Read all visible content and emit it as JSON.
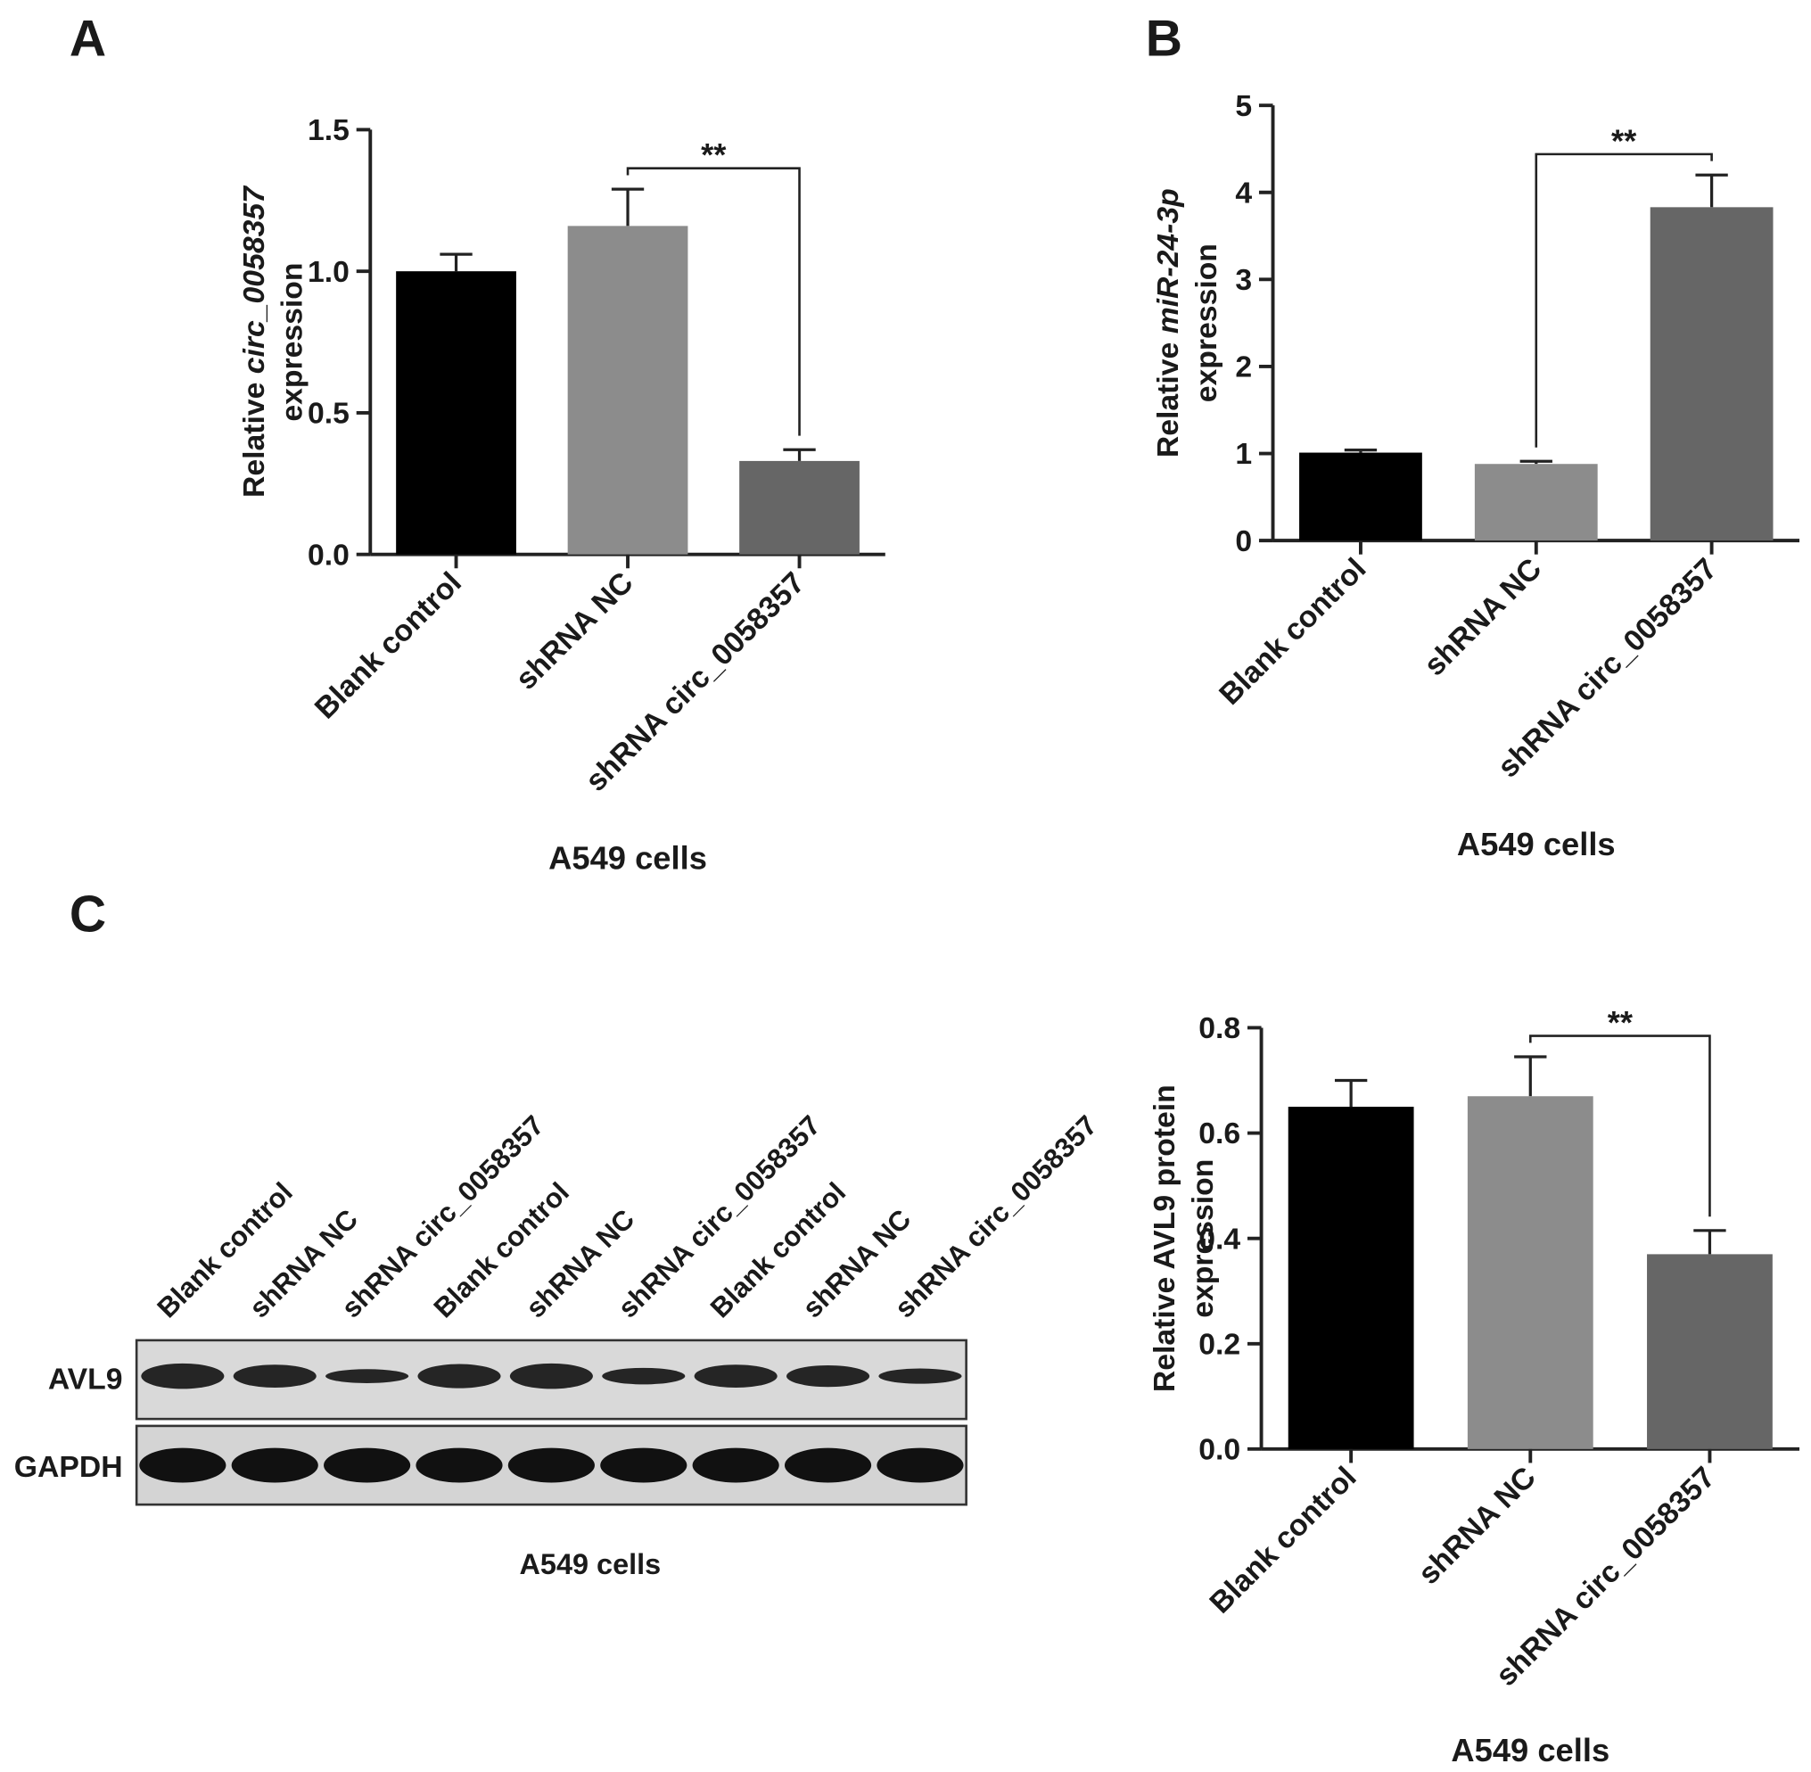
{
  "panels": [
    "A",
    "B",
    "C"
  ],
  "blot": {
    "lanes": [
      "Blank control",
      "shRNA NC",
      "shRNA circ_0058357",
      "Blank control",
      "shRNA NC",
      "shRNA circ_0058357",
      "Blank control",
      "shRNA NC",
      "shRNA circ_0058357"
    ],
    "bands": [
      "AVL9",
      "GAPDH"
    ],
    "xlabel": "A549 cells"
  },
  "chart_data": [
    {
      "type": "bar",
      "categories": [
        "Blank control",
        "shRNA NC",
        "shRNA circ_0058357"
      ],
      "values": [
        1.0,
        1.16,
        0.33
      ],
      "errors": [
        0.06,
        0.13,
        0.04
      ],
      "colors": [
        "#000000",
        "#8c8c8c",
        "#666666"
      ],
      "ylabel": [
        [
          "Relative",
          "circ_0058357"
        ],
        [
          "expression"
        ]
      ],
      "ylabel_italic": [
        [
          false,
          true
        ],
        [
          false
        ]
      ],
      "xlabel": "A549 cells",
      "ylim": [
        0,
        1.5
      ],
      "yticks": [
        {
          "value": 0,
          "label": "0.0"
        },
        {
          "value": 0.5,
          "label": "0.5"
        },
        {
          "value": 1,
          "label": "1.0"
        },
        {
          "value": 1.5,
          "label": "1.5"
        }
      ],
      "annotations": [
        {
          "text": "**",
          "from": 1,
          "to": 2
        }
      ]
    },
    {
      "type": "bar",
      "categories": [
        "Blank control",
        "shRNA NC",
        "shRNA circ_0058357"
      ],
      "values": [
        1.01,
        0.88,
        3.83
      ],
      "errors": [
        0.03,
        0.03,
        0.37
      ],
      "colors": [
        "#000000",
        "#8c8c8c",
        "#666666"
      ],
      "ylabel": [
        [
          "Relative",
          "miR-24-3p"
        ],
        [
          "expression"
        ]
      ],
      "ylabel_italic": [
        [
          false,
          true
        ],
        [
          false
        ]
      ],
      "xlabel": "A549 cells",
      "ylim": [
        0,
        5
      ],
      "yticks": [
        0,
        1,
        2,
        3,
        4,
        5
      ],
      "annotations": [
        {
          "text": "**",
          "from": 1,
          "to": 2
        }
      ]
    },
    {
      "type": "bar",
      "categories": [
        "Blank control",
        "shRNA NC",
        "shRNA circ_0058357"
      ],
      "values": [
        0.65,
        0.67,
        0.37
      ],
      "errors": [
        0.05,
        0.075,
        0.045
      ],
      "colors": [
        "#000000",
        "#8c8c8c",
        "#666666"
      ],
      "ylabel": [
        [
          "Relative AVL9 protein"
        ],
        [
          "expression"
        ]
      ],
      "ylabel_italic": [
        [
          false
        ],
        [
          false
        ]
      ],
      "xlabel": "A549 cells",
      "ylim": [
        0,
        0.8
      ],
      "yticks": [
        {
          "value": 0,
          "label": "0.0"
        },
        {
          "value": 0.2,
          "label": "0.2"
        },
        {
          "value": 0.4,
          "label": "0.4"
        },
        {
          "value": 0.6,
          "label": "0.6"
        },
        {
          "value": 0.8,
          "label": "0.8"
        }
      ],
      "annotations": [
        {
          "text": "**",
          "from": 1,
          "to": 2
        }
      ]
    }
  ]
}
